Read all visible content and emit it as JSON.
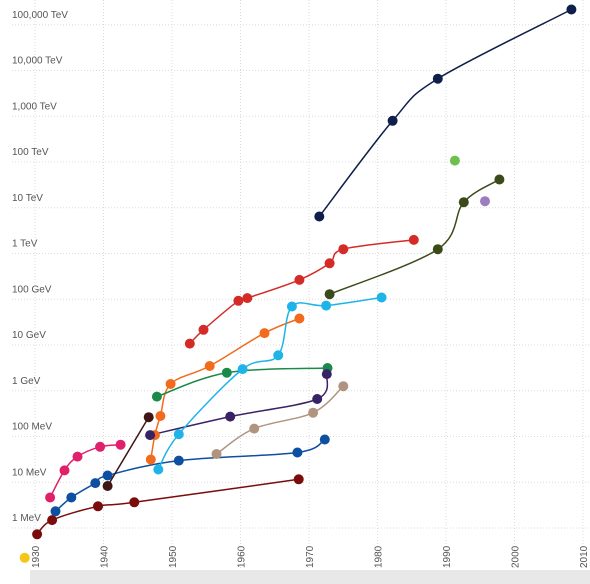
{
  "chart_data": {
    "type": "scatter",
    "title": "",
    "xlabel": "",
    "ylabel": "",
    "x_scale": "linear",
    "y_scale": "log",
    "xlim": [
      1930,
      2010
    ],
    "ylim_ev": [
      1000000,
      100000000000000000
    ],
    "grid": true,
    "legend": "none",
    "y_tick_labels": [
      "1 MeV",
      "10 MeV",
      "100 MeV",
      "1 GeV",
      "10 GeV",
      "100 GeV",
      "1 TeV",
      "10 TeV",
      "100 TeV",
      "1,000 TeV",
      "10,000 TeV",
      "100,000 TeV"
    ],
    "y_tick_values_ev": [
      1000000.0,
      10000000.0,
      100000000.0,
      1000000000.0,
      10000000000.0,
      100000000000.0,
      1000000000000.0,
      10000000000000.0,
      100000000000000.0,
      1000000000000000.0,
      1e+16,
      1e+17
    ],
    "x_tick_labels": [
      "1930",
      "1940",
      "1950",
      "1960",
      "1970",
      "1980",
      "1990",
      "2000",
      "2010"
    ],
    "x_tick_values": [
      1930,
      1940,
      1950,
      1960,
      1970,
      1980,
      1990,
      2000,
      2010
    ],
    "series": [
      {
        "color": "#7a0c0c",
        "points": [
          [
            1930.3,
            440000.0
          ],
          [
            1932.5,
            900000.0
          ],
          [
            1939.2,
            1800000.0
          ],
          [
            1944.5,
            2200000.0
          ],
          [
            1968.5,
            7000000.0
          ]
        ]
      },
      {
        "color": "#e0206a",
        "points": [
          [
            1932.2,
            2800000.0
          ],
          [
            1934.3,
            11000000.0
          ],
          [
            1936.2,
            22000000.0
          ],
          [
            1939.5,
            36000000.0
          ],
          [
            1942.5,
            40000000.0
          ]
        ]
      },
      {
        "color": "#0d4fa0",
        "points": [
          [
            1933,
            1400000.0
          ],
          [
            1935.3,
            2800000.0
          ],
          [
            1938.8,
            5800000.0
          ],
          [
            1940.6,
            8500000.0
          ],
          [
            1951,
            18000000.0
          ],
          [
            1968.3,
            27000000.0
          ],
          [
            1972.3,
            52000000.0
          ]
        ]
      },
      {
        "color": "#3f1616",
        "points": [
          [
            1940.6,
            5000000.0
          ],
          [
            1946.6,
            160000000.0
          ]
        ]
      },
      {
        "color": "#f26b1d",
        "points": [
          [
            1946.9,
            19000000.0
          ],
          [
            1947.5,
            65000000.0
          ],
          [
            1948.3,
            170000000.0
          ],
          [
            1949.8,
            850000000.0
          ],
          [
            1955.5,
            2100000000.0
          ],
          [
            1963.5,
            11000000000.0
          ],
          [
            1968.6,
            23000000000.0
          ]
        ]
      },
      {
        "color": "#1a8a4a",
        "points": [
          [
            1947.8,
            450000000.0
          ],
          [
            1958,
            1500000000.0
          ],
          [
            1972.7,
            1900000000.0
          ]
        ]
      },
      {
        "color": "#3a2266",
        "points": [
          [
            1946.8,
            65000000.0
          ],
          [
            1958.5,
            165000000.0
          ],
          [
            1971.2,
            400000000.0
          ],
          [
            1972.6,
            1400000000.0
          ]
        ]
      },
      {
        "color": "#b09480",
        "points": [
          [
            1956.5,
            25000000.0
          ],
          [
            1962,
            90000000.0
          ],
          [
            1970.6,
            200000000.0
          ],
          [
            1975,
            760000000.0
          ]
        ]
      },
      {
        "color": "#1fb4e8",
        "points": [
          [
            1948,
            11500000.0
          ],
          [
            1951,
            68000000.0
          ],
          [
            1960.3,
            1800000000.0
          ],
          [
            1965.5,
            3600000000.0
          ],
          [
            1967.5,
            42000000000.0
          ],
          [
            1972.5,
            44000000000.0
          ],
          [
            1980.6,
            66000000000.0
          ]
        ]
      },
      {
        "color": "#d42b27",
        "points": [
          [
            1952.6,
            6500000000.0
          ],
          [
            1954.6,
            13000000000.0
          ],
          [
            1959.7,
            56000000000.0
          ],
          [
            1961,
            64000000000.0
          ],
          [
            1968.6,
            160000000000.0
          ],
          [
            1973,
            370000000000.0
          ],
          [
            1975,
            750000000000.0
          ],
          [
            1985.3,
            1200000000000.0
          ]
        ]
      },
      {
        "color": "#3a4a18",
        "points": [
          [
            1973,
            78000000000.0
          ],
          [
            1988.8,
            750000000000.0
          ],
          [
            1992.6,
            8000000000000.0
          ],
          [
            1997.8,
            25000000000000.0
          ]
        ]
      },
      {
        "color": "#0f1f4a",
        "points": [
          [
            1971.5,
            3900000000000.0
          ],
          [
            1982.2,
            480000000000000.0
          ],
          [
            1988.8,
            4000000000000000.0
          ],
          [
            2008.3,
            1.3e+17
          ]
        ]
      }
    ],
    "isolated_points": [
      {
        "color": "#6dbf4e",
        "x": 1991.3,
        "y": 65000000000000.0
      },
      {
        "color": "#9c7ec0",
        "x": 1995.7,
        "y": 8400000000000.0
      },
      {
        "color": "#f5c518",
        "x": 1928.5,
        "y": 135000.0
      }
    ]
  }
}
